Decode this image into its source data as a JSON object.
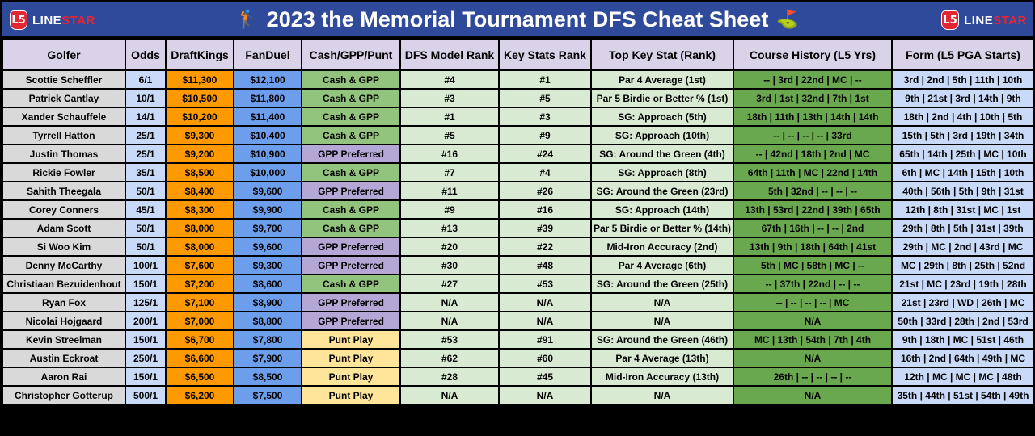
{
  "header": {
    "title": "2023 the Memorial Tournament DFS Cheat Sheet",
    "logo_mark": "L5",
    "logo_text_a": "LINE",
    "logo_text_b": "STAR"
  },
  "columns": [
    "Golfer",
    "Odds",
    "DraftKings",
    "FanDuel",
    "Cash/GPP/Punt",
    "DFS Model Rank",
    "Key Stats Rank",
    "Top Key Stat (Rank)",
    "Course History (L5 Yrs)",
    "Form (L5 PGA Starts)"
  ],
  "rows": [
    {
      "golfer": "Scottie Scheffler",
      "odds": "6/1",
      "dk": "$11,300",
      "fd": "$12,100",
      "play": "Cash & GPP",
      "play_type": "cash",
      "model": "#4",
      "key": "#1",
      "stat": "Par 4 Average (1st)",
      "history": "-- | 3rd | 22nd | MC | --",
      "form": "3rd | 2nd | 5th | 11th | 10th"
    },
    {
      "golfer": "Patrick Cantlay",
      "odds": "10/1",
      "dk": "$10,500",
      "fd": "$11,800",
      "play": "Cash & GPP",
      "play_type": "cash",
      "model": "#3",
      "key": "#5",
      "stat": "Par 5 Birdie or Better % (1st)",
      "history": "3rd | 1st | 32nd | 7th | 1st",
      "form": "9th | 21st | 3rd | 14th | 9th"
    },
    {
      "golfer": "Xander Schauffele",
      "odds": "14/1",
      "dk": "$10,200",
      "fd": "$11,400",
      "play": "Cash & GPP",
      "play_type": "cash",
      "model": "#1",
      "key": "#3",
      "stat": "SG: Approach (5th)",
      "history": "18th | 11th | 13th | 14th | 14th",
      "form": "18th | 2nd | 4th | 10th | 5th"
    },
    {
      "golfer": "Tyrrell Hatton",
      "odds": "25/1",
      "dk": "$9,300",
      "fd": "$10,400",
      "play": "Cash & GPP",
      "play_type": "cash",
      "model": "#5",
      "key": "#9",
      "stat": "SG: Approach (10th)",
      "history": "-- | -- | -- | -- | 33rd",
      "form": "15th | 5th | 3rd | 19th | 34th"
    },
    {
      "golfer": "Justin Thomas",
      "odds": "25/1",
      "dk": "$9,200",
      "fd": "$10,900",
      "play": "GPP Preferred",
      "play_type": "gpp",
      "model": "#16",
      "key": "#24",
      "stat": "SG: Around the Green (4th)",
      "history": "-- | 42nd | 18th | 2nd | MC",
      "form": "65th | 14th | 25th | MC | 10th"
    },
    {
      "golfer": "Rickie Fowler",
      "odds": "35/1",
      "dk": "$8,500",
      "fd": "$10,000",
      "play": "Cash & GPP",
      "play_type": "cash",
      "model": "#7",
      "key": "#4",
      "stat": "SG: Approach (8th)",
      "history": "64th | 11th | MC | 22nd | 14th",
      "form": "6th | MC | 14th | 15th | 10th"
    },
    {
      "golfer": "Sahith Theegala",
      "odds": "50/1",
      "dk": "$8,400",
      "fd": "$9,600",
      "play": "GPP Preferred",
      "play_type": "gpp",
      "model": "#11",
      "key": "#26",
      "stat": "SG: Around the Green (23rd)",
      "history": "5th | 32nd | -- | -- | --",
      "form": "40th | 56th | 5th | 9th | 31st"
    },
    {
      "golfer": "Corey Conners",
      "odds": "45/1",
      "dk": "$8,300",
      "fd": "$9,900",
      "play": "Cash & GPP",
      "play_type": "cash",
      "model": "#9",
      "key": "#16",
      "stat": "SG: Approach (14th)",
      "history": "13th | 53rd | 22nd | 39th | 65th",
      "form": "12th | 8th | 31st | MC | 1st"
    },
    {
      "golfer": "Adam Scott",
      "odds": "50/1",
      "dk": "$8,000",
      "fd": "$9,700",
      "play": "Cash & GPP",
      "play_type": "cash",
      "model": "#13",
      "key": "#39",
      "stat": "Par 5 Birdie or Better % (14th)",
      "history": "67th | 16th | -- | -- | 2nd",
      "form": "29th | 8th | 5th | 31st | 39th"
    },
    {
      "golfer": "Si Woo Kim",
      "odds": "50/1",
      "dk": "$8,000",
      "fd": "$9,600",
      "play": "GPP Preferred",
      "play_type": "gpp",
      "model": "#20",
      "key": "#22",
      "stat": "Mid-Iron Accuracy (2nd)",
      "history": "13th | 9th | 18th | 64th | 41st",
      "form": "29th | MC | 2nd | 43rd | MC"
    },
    {
      "golfer": "Denny McCarthy",
      "odds": "100/1",
      "dk": "$7,600",
      "fd": "$9,300",
      "play": "GPP Preferred",
      "play_type": "gpp",
      "model": "#30",
      "key": "#48",
      "stat": "Par 4 Average (6th)",
      "history": "5th | MC | 58th | MC | --",
      "form": "MC | 29th | 8th | 25th | 52nd"
    },
    {
      "golfer": "Christiaan Bezuidenhout",
      "odds": "150/1",
      "dk": "$7,200",
      "fd": "$8,600",
      "play": "Cash & GPP",
      "play_type": "cash",
      "model": "#27",
      "key": "#53",
      "stat": "SG: Around the Green (25th)",
      "history": "-- | 37th | 22nd | -- | --",
      "form": "21st | MC | 23rd | 19th | 28th"
    },
    {
      "golfer": "Ryan Fox",
      "odds": "125/1",
      "dk": "$7,100",
      "fd": "$8,900",
      "play": "GPP Preferred",
      "play_type": "gpp",
      "model": "N/A",
      "key": "N/A",
      "stat": "N/A",
      "history": "-- | -- | -- | -- | MC",
      "form": "21st | 23rd | WD | 26th | MC"
    },
    {
      "golfer": "Nicolai Hojgaard",
      "odds": "200/1",
      "dk": "$7,000",
      "fd": "$8,800",
      "play": "GPP Preferred",
      "play_type": "gpp",
      "model": "N/A",
      "key": "N/A",
      "stat": "N/A",
      "history": "N/A",
      "form": "50th | 33rd | 28th | 2nd | 53rd"
    },
    {
      "golfer": "Kevin Streelman",
      "odds": "150/1",
      "dk": "$6,700",
      "fd": "$7,800",
      "play": "Punt Play",
      "play_type": "punt",
      "model": "#53",
      "key": "#91",
      "stat": "SG: Around the Green (46th)",
      "history": "MC | 13th | 54th | 7th | 4th",
      "form": "9th | 18th | MC | 51st | 46th"
    },
    {
      "golfer": "Austin Eckroat",
      "odds": "250/1",
      "dk": "$6,600",
      "fd": "$7,900",
      "play": "Punt Play",
      "play_type": "punt",
      "model": "#62",
      "key": "#60",
      "stat": "Par 4 Average (13th)",
      "history": "N/A",
      "form": "16th | 2nd | 64th | 49th | MC"
    },
    {
      "golfer": "Aaron Rai",
      "odds": "150/1",
      "dk": "$6,500",
      "fd": "$8,500",
      "play": "Punt Play",
      "play_type": "punt",
      "model": "#28",
      "key": "#45",
      "stat": "Mid-Iron Accuracy (13th)",
      "history": "26th | -- | -- | -- | --",
      "form": "12th | MC | MC | MC | 48th"
    },
    {
      "golfer": "Christopher Gotterup",
      "odds": "500/1",
      "dk": "$6,200",
      "fd": "$7,500",
      "play": "Punt Play",
      "play_type": "punt",
      "model": "N/A",
      "key": "N/A",
      "stat": "N/A",
      "history": "N/A",
      "form": "35th | 44th | 51st | 54th | 49th"
    }
  ]
}
